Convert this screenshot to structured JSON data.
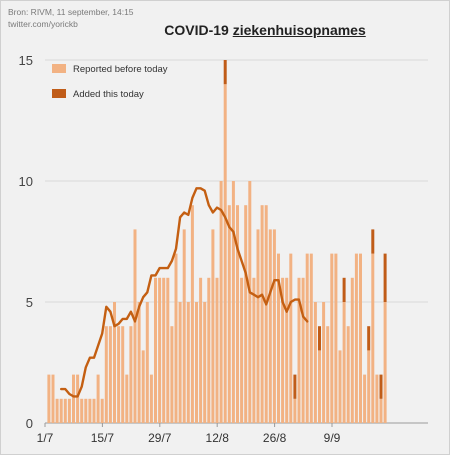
{
  "source": {
    "line1": "Bron: RIVM, 11 september, 14:15",
    "line2": "twitter.com/yorickb"
  },
  "chart_data": {
    "type": "bar",
    "title_main": "COVID-19",
    "title_underlined": "ziekenhuisopnames",
    "start_date": "2020-07-01",
    "ylim": [
      0,
      15
    ],
    "yticks": [
      0,
      5,
      10,
      15
    ],
    "xtick_labels": [
      "1/7",
      "15/7",
      "29/7",
      "12/8",
      "26/8",
      "9/9"
    ],
    "series": [
      {
        "name": "Reported before today",
        "color": "#f2b283",
        "values": [
          2,
          2,
          1,
          1,
          1,
          1,
          2,
          2,
          1,
          1,
          1,
          1,
          2,
          1,
          4,
          4,
          5,
          4,
          4,
          2,
          4,
          8,
          5,
          3,
          5,
          2,
          6,
          6,
          6,
          6,
          4,
          7,
          5,
          8,
          5,
          9,
          5,
          6,
          5,
          6,
          8,
          6,
          10,
          14,
          9,
          10,
          9,
          6,
          9,
          10,
          6,
          8,
          9,
          9,
          8,
          8,
          7,
          6,
          6,
          7,
          1,
          6,
          6,
          7,
          7,
          5,
          3,
          5,
          4,
          7,
          7,
          3,
          5,
          4,
          6,
          7,
          7,
          2,
          3,
          7,
          2,
          1,
          5,
          0
        ]
      },
      {
        "name": "Added this today",
        "color": "#c05c18",
        "values": [
          0,
          0,
          0,
          0,
          0,
          0,
          0,
          0,
          0,
          0,
          0,
          0,
          0,
          0,
          0,
          0,
          0,
          0,
          0,
          0,
          0,
          0,
          0,
          0,
          0,
          0,
          0,
          0,
          0,
          0,
          0,
          0,
          0,
          0,
          0,
          0,
          0,
          0,
          0,
          0,
          0,
          0,
          0,
          1,
          0,
          0,
          0,
          0,
          0,
          0,
          0,
          0,
          0,
          0,
          0,
          0,
          0,
          0,
          0,
          0,
          1,
          0,
          0,
          0,
          0,
          0,
          1,
          0,
          0,
          0,
          0,
          0,
          1,
          0,
          0,
          0,
          0,
          0,
          1,
          1,
          0,
          1,
          2,
          0
        ]
      }
    ],
    "moving_average": {
      "color": "#c45f12",
      "start_index": 3,
      "values": [
        1.4,
        1.4,
        1.2,
        1.1,
        1.1,
        1.5,
        2.3,
        2.7,
        2.7,
        3.2,
        3.7,
        4.8,
        4.6,
        4.0,
        4.1,
        4.3,
        4.3,
        4.6,
        4.2,
        4.8,
        5.2,
        5.4,
        6.1,
        6.1,
        6.4,
        6.4,
        6.4,
        6.7,
        7.2,
        8.5,
        8.7,
        8.6,
        9.3,
        9.7,
        9.7,
        9.6,
        9.0,
        8.7,
        8.9,
        8.8,
        8.5,
        8.1,
        7.9,
        7.2,
        6.7,
        6.2,
        5.4,
        5.3,
        5.2,
        5.3,
        4.9,
        5.4,
        5.9,
        5.9,
        5.0,
        4.6,
        5.0,
        5.1,
        5.1,
        4.4,
        4.2
      ]
    }
  }
}
